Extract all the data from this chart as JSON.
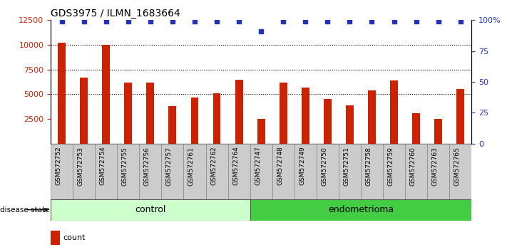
{
  "title": "GDS3975 / ILMN_1683664",
  "samples": [
    "GSM572752",
    "GSM572753",
    "GSM572754",
    "GSM572755",
    "GSM572756",
    "GSM572757",
    "GSM572761",
    "GSM572762",
    "GSM572764",
    "GSM572747",
    "GSM572748",
    "GSM572749",
    "GSM572750",
    "GSM572751",
    "GSM572758",
    "GSM572759",
    "GSM572760",
    "GSM572763",
    "GSM572765"
  ],
  "counts": [
    10200,
    6700,
    10000,
    6200,
    6200,
    3800,
    4700,
    5100,
    6500,
    2500,
    6200,
    5700,
    4500,
    3900,
    5400,
    6400,
    3100,
    2500,
    5500
  ],
  "percentiles": [
    99,
    99,
    99,
    99,
    99,
    99,
    99,
    99,
    99,
    91,
    99,
    99,
    99,
    99,
    99,
    99,
    99,
    99,
    99
  ],
  "n_control": 9,
  "n_endometrioma": 10,
  "bar_color": "#cc2200",
  "dot_color": "#2233bb",
  "control_bg": "#ccffcc",
  "endo_bg": "#44cc44",
  "tick_bg": "#cccccc",
  "ylim_left": [
    0,
    12500
  ],
  "ylim_right": [
    0,
    100
  ],
  "yticks_left": [
    2500,
    5000,
    7500,
    10000,
    12500
  ],
  "yticks_right": [
    0,
    25,
    50,
    75,
    100
  ],
  "bar_width": 0.35
}
